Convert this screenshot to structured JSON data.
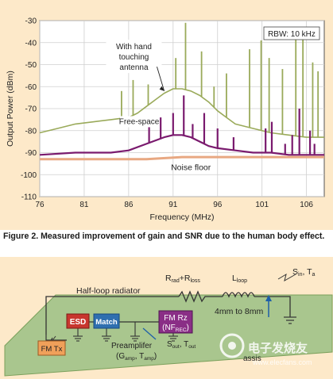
{
  "chart_data": {
    "type": "line",
    "xlabel": "Frequency (MHz)",
    "ylabel": "Output Power (dBm)",
    "xlim": [
      76,
      108
    ],
    "ylim": [
      -110,
      -30
    ],
    "x_ticks": [
      76,
      81,
      86,
      91,
      96,
      101,
      106
    ],
    "y_ticks": [
      -30,
      -40,
      -50,
      -60,
      -70,
      -80,
      -90,
      -100,
      -110
    ],
    "grid": true,
    "series": [
      {
        "name": "With hand touching antenna",
        "color": "#9aaa5a",
        "x": [
          76,
          78,
          80,
          82,
          84,
          86,
          87,
          88,
          89,
          90,
          91,
          92,
          93,
          94,
          95,
          96,
          97,
          98,
          100,
          102,
          104,
          106,
          108
        ],
        "y": [
          -81,
          -79,
          -77,
          -76,
          -75,
          -74,
          -72,
          -69,
          -66,
          -63,
          -61,
          -61,
          -62,
          -64,
          -67,
          -71,
          -74,
          -77,
          -79,
          -81,
          -82,
          -83,
          -83
        ],
        "spikes": [
          [
            85.2,
            -62
          ],
          [
            86.5,
            -57
          ],
          [
            88.2,
            -59
          ],
          [
            91.3,
            -47
          ],
          [
            92.4,
            -31
          ],
          [
            94.2,
            -44
          ],
          [
            95.6,
            -60
          ],
          [
            97.0,
            -54
          ],
          [
            99.6,
            -43
          ],
          [
            100.9,
            -39
          ],
          [
            101.8,
            -47
          ],
          [
            103.3,
            -52
          ],
          [
            104.8,
            -38
          ],
          [
            105.6,
            -35
          ],
          [
            106.7,
            -49
          ],
          [
            107.3,
            -53
          ]
        ]
      },
      {
        "name": "Free-space",
        "color": "#7a1a6e",
        "x": [
          76,
          80,
          84,
          86,
          88,
          90,
          91,
          92,
          93,
          94,
          95,
          96,
          98,
          100,
          102,
          104,
          106,
          108
        ],
        "y": [
          -91,
          -90,
          -90,
          -89,
          -86,
          -83,
          -82,
          -82,
          -83,
          -85,
          -87,
          -88,
          -89,
          -90,
          -90,
          -91,
          -91,
          -91
        ],
        "spikes": [
          [
            88.3,
            -77
          ],
          [
            89.6,
            -74
          ],
          [
            91.0,
            -72
          ],
          [
            92.2,
            -64
          ],
          [
            93.2,
            -77
          ],
          [
            94.5,
            -72
          ],
          [
            96.0,
            -79
          ],
          [
            97.8,
            -83
          ],
          [
            101.4,
            -79
          ],
          [
            102.1,
            -76
          ],
          [
            103.6,
            -86
          ],
          [
            104.4,
            -82
          ],
          [
            105.2,
            -70
          ],
          [
            106.4,
            -80
          ],
          [
            106.9,
            -86
          ]
        ]
      },
      {
        "name": "Noise floor",
        "color": "#e8a882",
        "x": [
          76,
          80,
          84,
          88,
          92,
          96,
          100,
          104,
          108
        ],
        "y": [
          -93,
          -93,
          -93,
          -93,
          -92,
          -92,
          -92,
          -92,
          -92
        ]
      }
    ],
    "annotations": {
      "rbw": "RBW: 10 kHz",
      "hand_label": [
        "With hand",
        "touching",
        "antenna"
      ],
      "free_space_label": "Free-space",
      "noise_floor_label": "Noise floor"
    }
  },
  "caption": "Figure 2. Measured improvement of gain and SNR due to the human body effect.",
  "diagram": {
    "half_loop_label": "Half-loop radiator",
    "r_rad": "R",
    "r_rad_sub": "rad",
    "plus": "+R",
    "r_loss_sub": "loss",
    "l_loop": "L",
    "l_loop_sub": "loop",
    "distance": "4mm to 8mm",
    "s_in": "S",
    "s_in_sub": "in",
    "t_a_sep": ", T",
    "t_a_sub": "a",
    "esd": "ESD",
    "match": "Match",
    "fm_rz_line1": "FM Rz",
    "fm_rz_line2": "(NF",
    "fm_rz_sub": "REC",
    "fm_rz_close": ")",
    "fm_tx": "FM Tx",
    "s_out": "S",
    "s_out_sub": "out",
    "t_out_sep": ", T",
    "t_out_sub": "out",
    "preamp_line1": "Preamplifer",
    "preamp_open": "(G",
    "g_amp_sub": "amp",
    "t_amp_sep": ", T",
    "t_amp_sub": "amp",
    "preamp_close": ")",
    "chassis": "assis",
    "watermark": "电子发烧友",
    "watermark_url": "www.elecfans.com"
  }
}
